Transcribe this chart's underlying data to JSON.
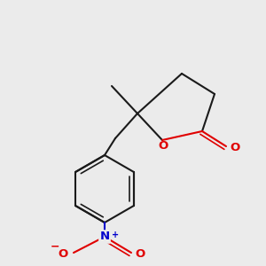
{
  "bg_color": "#ebebeb",
  "bond_color": "#1a1a1a",
  "o_color": "#e00000",
  "n_color": "#0000cc",
  "lw": 1.5,
  "figsize": [
    3.0,
    3.0
  ],
  "dpi": 100,
  "ring_O_label": "O",
  "carbonyl_O_label": "O",
  "N_label": "N",
  "plus_label": "+",
  "minus_label": "−",
  "O_nitro_label": "O"
}
